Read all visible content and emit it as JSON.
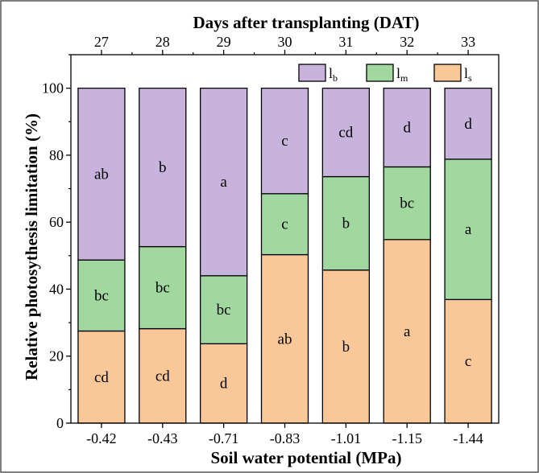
{
  "chart_data": {
    "type": "bar",
    "stacked": true,
    "categories": [
      "-0.42",
      "-0.43",
      "-0.71",
      "-0.83",
      "-1.01",
      "-1.15",
      "-1.44"
    ],
    "top_categories": [
      "27",
      "28",
      "29",
      "30",
      "31",
      "32",
      "33"
    ],
    "xlabel": "Soil water potential (MPa)",
    "x2label": "Days after transplanting (DAT)",
    "ylabel": "Relative photosythesis limitation (%)",
    "ylim": [
      0,
      110
    ],
    "yticks": [
      0,
      20,
      40,
      60,
      80,
      100
    ],
    "legend_position": "top-right",
    "series": [
      {
        "name": "ls",
        "legend_main": "l",
        "legend_sub": "s",
        "color": "#fac898",
        "values": [
          27.5,
          28.2,
          23.7,
          50.3,
          45.7,
          54.8,
          36.9
        ],
        "labels": [
          "cd",
          "cd",
          "d",
          "ab",
          "b",
          "a",
          "c"
        ]
      },
      {
        "name": "lm",
        "legend_main": "l",
        "legend_sub": "m",
        "color": "#a0d8a0",
        "values": [
          21.2,
          24.5,
          20.3,
          18.2,
          27.9,
          21.7,
          41.9
        ],
        "labels": [
          "bc",
          "bc",
          "bc",
          "c",
          "b",
          "bc",
          "a"
        ]
      },
      {
        "name": "lb",
        "legend_main": "l",
        "legend_sub": "b",
        "color": "#c8b3dc",
        "values": [
          51.3,
          47.3,
          56.0,
          31.5,
          26.4,
          23.5,
          21.2
        ],
        "labels": [
          "ab",
          "b",
          "a",
          "c",
          "cd",
          "d",
          "d"
        ]
      }
    ]
  }
}
